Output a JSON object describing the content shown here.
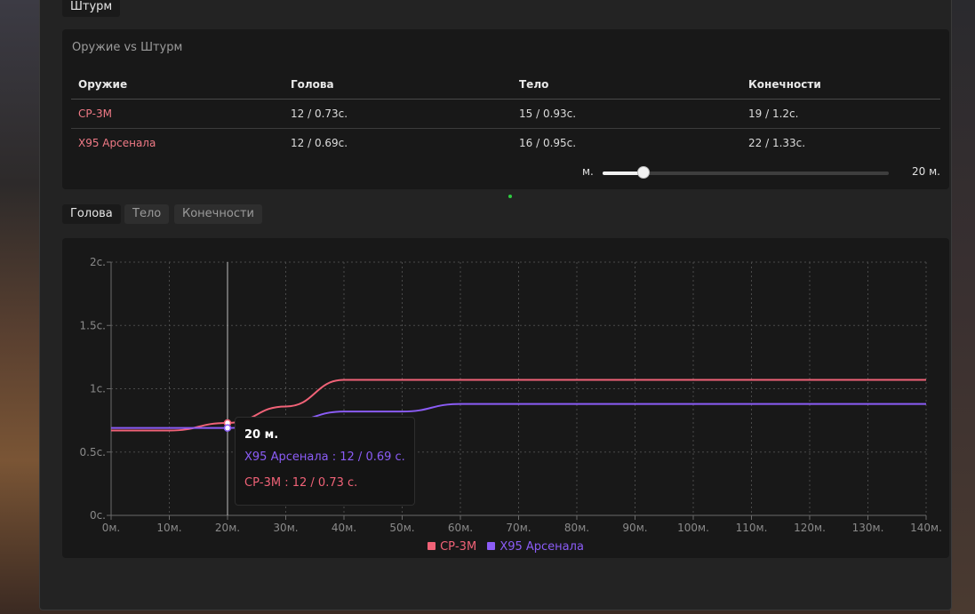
{
  "top_tab": {
    "label": "Штурм"
  },
  "comparison": {
    "title": "Оружие vs Штурм",
    "columns": [
      "Оружие",
      "Голова",
      "Тело",
      "Конечности"
    ],
    "rows": [
      {
        "weapon": "СР-3М",
        "head": "12 / 0.73с.",
        "body": "15 / 0.93с.",
        "limbs": "19 / 1.2с."
      },
      {
        "weapon": "Х95 Арсенала",
        "head": "12 / 0.69с.",
        "body": "16 / 0.95с.",
        "limbs": "22 / 1.33с."
      }
    ],
    "range": {
      "unit_label": "м.",
      "value": 20,
      "min": 0,
      "max": 140,
      "value_label": "20 м."
    }
  },
  "zone_tabs": [
    {
      "label": "Голова",
      "active": true
    },
    {
      "label": "Тело",
      "active": false
    },
    {
      "label": "Конечности",
      "active": false
    }
  ],
  "colors": {
    "sr3m": "#f06277",
    "x95": "#8b5cf6",
    "grid": "#4a4a4a"
  },
  "chart_data": {
    "type": "line",
    "x_unit": "м.",
    "y_unit": "с.",
    "xlim": [
      0,
      140
    ],
    "ylim": [
      0,
      2
    ],
    "x_ticks": [
      "0м.",
      "10м.",
      "20м.",
      "30м.",
      "40м.",
      "50м.",
      "60м.",
      "70м.",
      "80м.",
      "90м.",
      "100м.",
      "110м.",
      "120м.",
      "130м.",
      "140м."
    ],
    "y_ticks": [
      "0с.",
      "0.5с.",
      "1с.",
      "1.5с.",
      "2с."
    ],
    "grid": true,
    "legend_position": "bottom",
    "series": [
      {
        "name": "СР-3М",
        "color": "#f06277",
        "x": [
          0,
          10,
          20,
          30,
          40,
          50,
          60,
          70,
          80,
          90,
          100,
          110,
          120,
          130,
          140
        ],
        "y": [
          0.67,
          0.67,
          0.73,
          0.86,
          1.07,
          1.07,
          1.07,
          1.07,
          1.07,
          1.07,
          1.07,
          1.07,
          1.07,
          1.07,
          1.07
        ]
      },
      {
        "name": "Х95 Арсенала",
        "color": "#8b5cf6",
        "x": [
          0,
          10,
          20,
          30,
          40,
          50,
          60,
          70,
          80,
          90,
          100,
          110,
          120,
          130,
          140
        ],
        "y": [
          0.69,
          0.69,
          0.69,
          0.74,
          0.82,
          0.82,
          0.88,
          0.88,
          0.88,
          0.88,
          0.88,
          0.88,
          0.88,
          0.88,
          0.88
        ]
      }
    ],
    "cursor_x": 20,
    "tooltip": {
      "title": "20 м.",
      "rows": [
        {
          "text": "Х95 Арсенала : 12 / 0.69 с.",
          "color": "#8b5cf6"
        },
        {
          "text": "СР-3М : 12 / 0.73 с.",
          "color": "#f06277"
        }
      ]
    }
  }
}
